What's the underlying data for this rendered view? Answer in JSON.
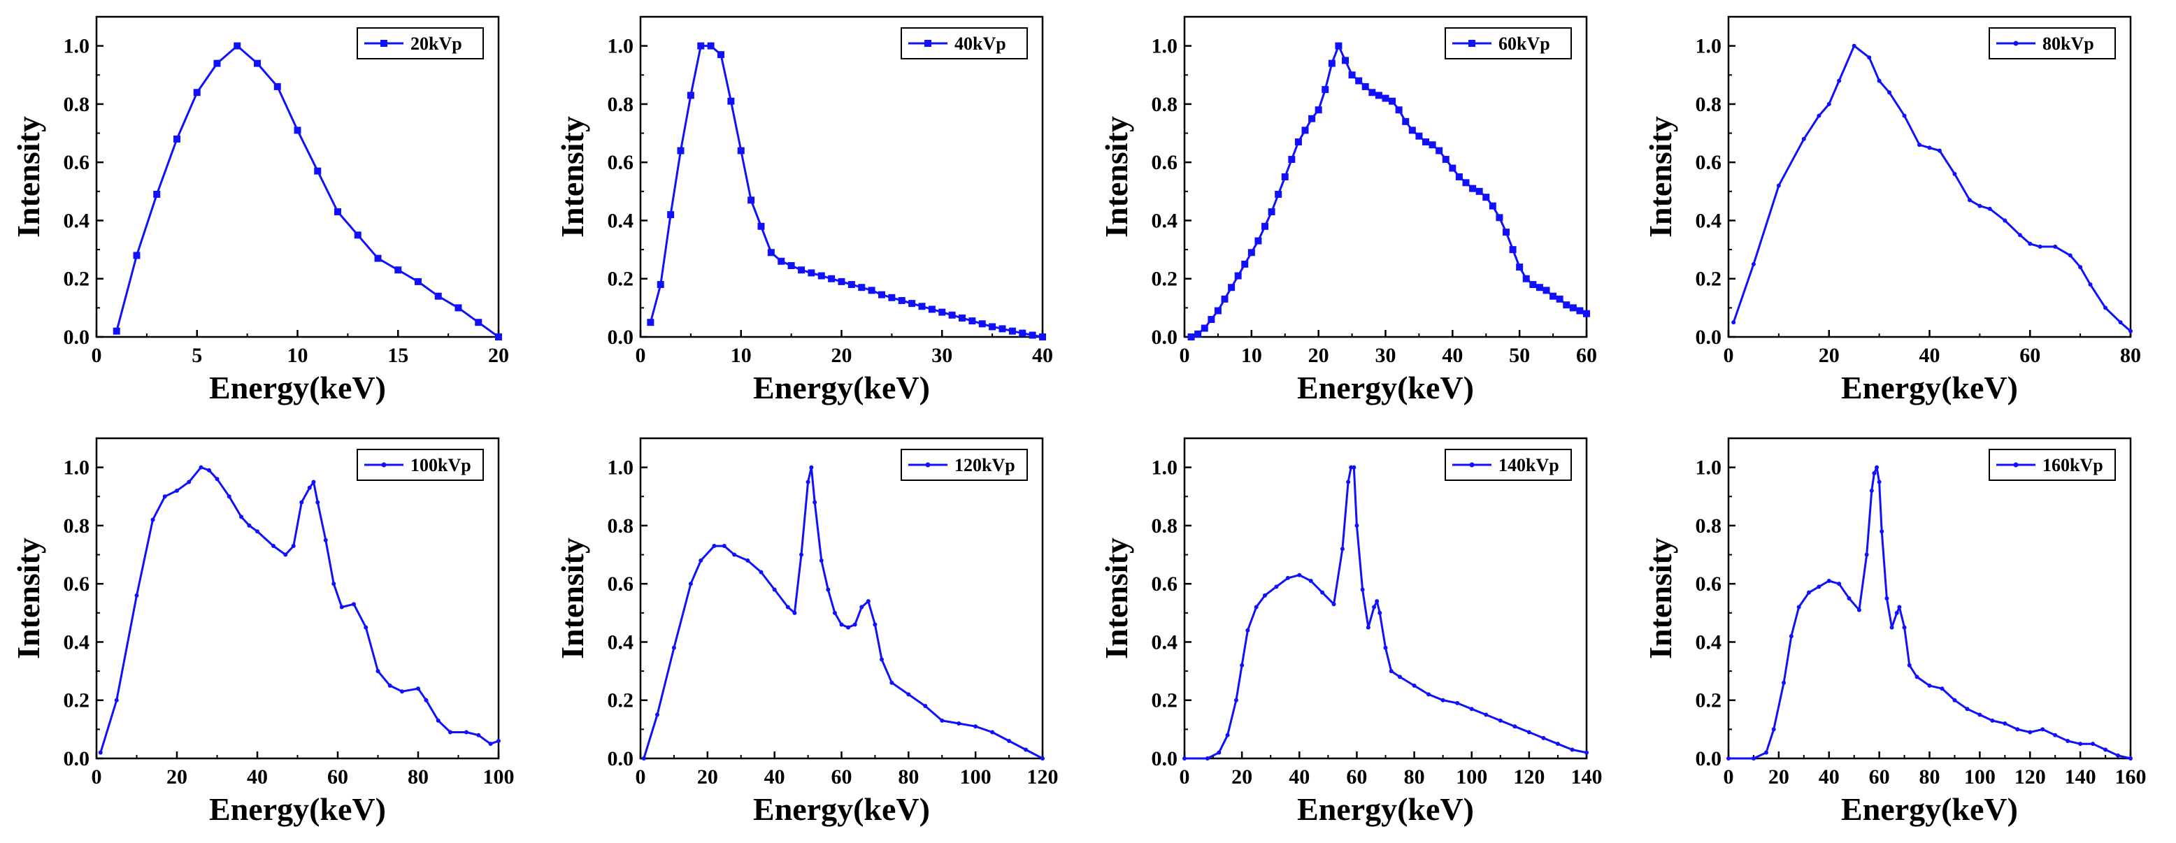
{
  "colors": {
    "series": "#1010ff",
    "axis": "#000000",
    "background": "#ffffff"
  },
  "chart_data": [
    {
      "type": "line",
      "legend": "20kVp",
      "marker": "square",
      "xlabel": "Energy(keV)",
      "ylabel": "Intensity",
      "xlim": [
        0,
        20
      ],
      "ylim": [
        0,
        1.1
      ],
      "xticks": [
        "0",
        "5",
        "10",
        "15",
        "20"
      ],
      "yticks": [
        "0.0",
        "0.2",
        "0.4",
        "0.6",
        "0.8",
        "1.0"
      ],
      "x": [
        1,
        2,
        3,
        4,
        5,
        6,
        7,
        8,
        9,
        10,
        11,
        12,
        13,
        14,
        15,
        16,
        17,
        18,
        19,
        20
      ],
      "y": [
        0.02,
        0.28,
        0.49,
        0.68,
        0.84,
        0.94,
        1.0,
        0.94,
        0.86,
        0.71,
        0.57,
        0.43,
        0.35,
        0.27,
        0.23,
        0.19,
        0.14,
        0.1,
        0.05,
        0.0
      ]
    },
    {
      "type": "line",
      "legend": "40kVp",
      "marker": "square",
      "xlabel": "Energy(keV)",
      "ylabel": "Intensity",
      "xlim": [
        0,
        40
      ],
      "ylim": [
        0,
        1.1
      ],
      "xticks": [
        "0",
        "10",
        "20",
        "30",
        "40"
      ],
      "yticks": [
        "0.0",
        "0.2",
        "0.4",
        "0.6",
        "0.8",
        "1.0"
      ],
      "x": [
        1,
        2,
        3,
        4,
        5,
        6,
        7,
        8,
        9,
        10,
        11,
        12,
        13,
        14,
        15,
        16,
        17,
        18,
        19,
        20,
        21,
        22,
        23,
        24,
        25,
        26,
        27,
        28,
        29,
        30,
        31,
        32,
        33,
        34,
        35,
        36,
        37,
        38,
        39,
        40
      ],
      "y": [
        0.05,
        0.18,
        0.42,
        0.64,
        0.83,
        1.0,
        1.0,
        0.97,
        0.81,
        0.64,
        0.47,
        0.38,
        0.29,
        0.26,
        0.245,
        0.23,
        0.22,
        0.21,
        0.2,
        0.19,
        0.18,
        0.17,
        0.16,
        0.145,
        0.135,
        0.125,
        0.115,
        0.105,
        0.095,
        0.085,
        0.075,
        0.065,
        0.055,
        0.045,
        0.035,
        0.028,
        0.02,
        0.013,
        0.006,
        0.0
      ]
    },
    {
      "type": "line",
      "legend": "60kVp",
      "marker": "square",
      "xlabel": "Energy(keV)",
      "ylabel": "Intensity",
      "xlim": [
        0,
        60
      ],
      "ylim": [
        0,
        1.1
      ],
      "xticks": [
        "0",
        "10",
        "20",
        "30",
        "40",
        "50",
        "60"
      ],
      "yticks": [
        "0.0",
        "0.2",
        "0.4",
        "0.6",
        "0.8",
        "1.0"
      ],
      "x": [
        1,
        2,
        3,
        4,
        5,
        6,
        7,
        8,
        9,
        10,
        11,
        12,
        13,
        14,
        15,
        16,
        17,
        18,
        19,
        20,
        21,
        22,
        23,
        24,
        25,
        26,
        27,
        28,
        29,
        30,
        31,
        32,
        33,
        34,
        35,
        36,
        37,
        38,
        39,
        40,
        41,
        42,
        43,
        44,
        45,
        46,
        47,
        48,
        49,
        50,
        51,
        52,
        53,
        54,
        55,
        56,
        57,
        58,
        59,
        60
      ],
      "y": [
        0.0,
        0.01,
        0.03,
        0.06,
        0.09,
        0.13,
        0.17,
        0.21,
        0.25,
        0.29,
        0.33,
        0.38,
        0.43,
        0.49,
        0.55,
        0.61,
        0.67,
        0.71,
        0.75,
        0.78,
        0.85,
        0.94,
        1.0,
        0.95,
        0.9,
        0.88,
        0.86,
        0.84,
        0.83,
        0.82,
        0.81,
        0.78,
        0.74,
        0.71,
        0.69,
        0.67,
        0.66,
        0.64,
        0.61,
        0.58,
        0.55,
        0.53,
        0.51,
        0.5,
        0.48,
        0.45,
        0.41,
        0.36,
        0.3,
        0.24,
        0.2,
        0.18,
        0.17,
        0.16,
        0.14,
        0.13,
        0.11,
        0.1,
        0.09,
        0.08
      ]
    },
    {
      "type": "line",
      "legend": "80kVp",
      "marker": "dot",
      "xlabel": "Energy(keV)",
      "ylabel": "Intensity",
      "xlim": [
        0,
        80
      ],
      "ylim": [
        0,
        1.1
      ],
      "xticks": [
        "0",
        "20",
        "40",
        "60",
        "80"
      ],
      "yticks": [
        "0.0",
        "0.2",
        "0.4",
        "0.6",
        "0.8",
        "1.0"
      ],
      "x": [
        1,
        5,
        10,
        15,
        18,
        20,
        22,
        25,
        28,
        30,
        32,
        35,
        38,
        40,
        42,
        45,
        48,
        50,
        52,
        55,
        58,
        60,
        62,
        65,
        68,
        70,
        72,
        75,
        78,
        80
      ],
      "y": [
        0.05,
        0.25,
        0.52,
        0.68,
        0.76,
        0.8,
        0.88,
        1.0,
        0.96,
        0.88,
        0.84,
        0.76,
        0.66,
        0.65,
        0.64,
        0.56,
        0.47,
        0.45,
        0.44,
        0.4,
        0.35,
        0.32,
        0.31,
        0.31,
        0.28,
        0.24,
        0.18,
        0.1,
        0.05,
        0.02
      ]
    },
    {
      "type": "line",
      "legend": "100kVp",
      "marker": "dot",
      "xlabel": "Energy(keV)",
      "ylabel": "Intensity",
      "xlim": [
        0,
        100
      ],
      "ylim": [
        0,
        1.1
      ],
      "xticks": [
        "0",
        "20",
        "40",
        "60",
        "80",
        "100"
      ],
      "yticks": [
        "0.0",
        "0.2",
        "0.4",
        "0.6",
        "0.8",
        "1.0"
      ],
      "x": [
        1,
        5,
        10,
        14,
        17,
        20,
        23,
        26,
        28,
        30,
        33,
        36,
        38,
        40,
        44,
        47,
        49,
        51,
        53,
        54,
        55,
        57,
        59,
        61,
        64,
        67,
        70,
        73,
        76,
        80,
        82,
        85,
        88,
        92,
        95,
        98,
        100
      ],
      "y": [
        0.02,
        0.2,
        0.56,
        0.82,
        0.9,
        0.92,
        0.95,
        1.0,
        0.99,
        0.96,
        0.9,
        0.83,
        0.8,
        0.78,
        0.73,
        0.7,
        0.73,
        0.88,
        0.93,
        0.95,
        0.88,
        0.75,
        0.6,
        0.52,
        0.53,
        0.45,
        0.3,
        0.25,
        0.23,
        0.24,
        0.2,
        0.13,
        0.09,
        0.09,
        0.08,
        0.05,
        0.06
      ]
    },
    {
      "type": "line",
      "legend": "120kVp",
      "marker": "dot",
      "xlabel": "Energy(keV)",
      "ylabel": "Intensity",
      "xlim": [
        0,
        120
      ],
      "ylim": [
        0,
        1.1
      ],
      "xticks": [
        "0",
        "20",
        "40",
        "60",
        "80",
        "100",
        "120"
      ],
      "yticks": [
        "0.0",
        "0.2",
        "0.4",
        "0.6",
        "0.8",
        "1.0"
      ],
      "x": [
        1,
        5,
        10,
        15,
        18,
        22,
        25,
        28,
        32,
        36,
        40,
        44,
        46,
        48,
        50,
        51,
        52,
        54,
        56,
        58,
        60,
        62,
        64,
        66,
        68,
        70,
        72,
        75,
        80,
        85,
        90,
        95,
        100,
        105,
        110,
        115,
        120
      ],
      "y": [
        0.0,
        0.15,
        0.38,
        0.6,
        0.68,
        0.73,
        0.73,
        0.7,
        0.68,
        0.64,
        0.58,
        0.52,
        0.5,
        0.7,
        0.95,
        1.0,
        0.88,
        0.68,
        0.58,
        0.5,
        0.46,
        0.45,
        0.46,
        0.52,
        0.54,
        0.46,
        0.34,
        0.26,
        0.22,
        0.18,
        0.13,
        0.12,
        0.11,
        0.09,
        0.06,
        0.03,
        0.0
      ]
    },
    {
      "type": "line",
      "legend": "140kVp",
      "marker": "dot",
      "xlabel": "Energy(keV)",
      "ylabel": "Intensity",
      "xlim": [
        0,
        140
      ],
      "ylim": [
        0,
        1.1
      ],
      "xticks": [
        "0",
        "20",
        "40",
        "60",
        "80",
        "100",
        "120",
        "140"
      ],
      "yticks": [
        "0.0",
        "0.2",
        "0.4",
        "0.6",
        "0.8",
        "1.0"
      ],
      "x": [
        0,
        8,
        12,
        15,
        18,
        20,
        22,
        25,
        28,
        32,
        36,
        40,
        44,
        48,
        52,
        55,
        57,
        58,
        59,
        60,
        62,
        64,
        66,
        67,
        68,
        70,
        72,
        75,
        80,
        85,
        90,
        95,
        100,
        105,
        110,
        115,
        120,
        125,
        130,
        135,
        140
      ],
      "y": [
        0.0,
        0.0,
        0.02,
        0.08,
        0.2,
        0.32,
        0.44,
        0.52,
        0.56,
        0.59,
        0.62,
        0.63,
        0.61,
        0.57,
        0.53,
        0.72,
        0.95,
        1.0,
        1.0,
        0.8,
        0.58,
        0.45,
        0.52,
        0.54,
        0.5,
        0.38,
        0.3,
        0.28,
        0.25,
        0.22,
        0.2,
        0.19,
        0.17,
        0.15,
        0.13,
        0.11,
        0.09,
        0.07,
        0.05,
        0.03,
        0.02
      ]
    },
    {
      "type": "line",
      "legend": "160kVp",
      "marker": "dot",
      "xlabel": "Energy(keV)",
      "ylabel": "Intensity",
      "xlim": [
        0,
        160
      ],
      "ylim": [
        0,
        1.1
      ],
      "xticks": [
        "0",
        "20",
        "40",
        "60",
        "80",
        "100",
        "120",
        "140",
        "160"
      ],
      "yticks": [
        "0.0",
        "0.2",
        "0.4",
        "0.6",
        "0.8",
        "1.0"
      ],
      "x": [
        0,
        10,
        15,
        18,
        22,
        25,
        28,
        32,
        36,
        40,
        44,
        48,
        52,
        55,
        57,
        58,
        59,
        60,
        61,
        63,
        65,
        67,
        68,
        70,
        72,
        75,
        80,
        85,
        90,
        95,
        100,
        105,
        110,
        115,
        120,
        125,
        130,
        135,
        140,
        145,
        150,
        155,
        160
      ],
      "y": [
        0.0,
        0.0,
        0.02,
        0.1,
        0.26,
        0.42,
        0.52,
        0.57,
        0.59,
        0.61,
        0.6,
        0.55,
        0.51,
        0.7,
        0.92,
        0.98,
        1.0,
        0.95,
        0.78,
        0.55,
        0.45,
        0.5,
        0.52,
        0.45,
        0.32,
        0.28,
        0.25,
        0.24,
        0.2,
        0.17,
        0.15,
        0.13,
        0.12,
        0.1,
        0.09,
        0.1,
        0.08,
        0.06,
        0.05,
        0.05,
        0.03,
        0.01,
        0.0
      ]
    }
  ]
}
